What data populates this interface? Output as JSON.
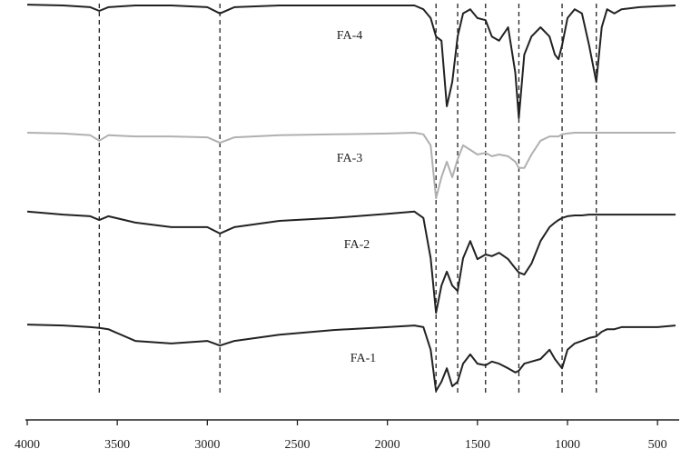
{
  "chart_data": {
    "type": "line",
    "xlim": [
      4000,
      400
    ],
    "ylim": [
      0,
      100
    ],
    "xticks": [
      4000,
      3500,
      3000,
      2500,
      2000,
      1500,
      1000,
      500
    ],
    "marker_lines": [
      3600,
      2930,
      1730,
      1610,
      1455,
      1270,
      1030,
      840
    ],
    "x": [
      4000,
      3800,
      3650,
      3600,
      3550,
      3400,
      3200,
      3000,
      2930,
      2850,
      2600,
      2300,
      2000,
      1850,
      1800,
      1760,
      1730,
      1700,
      1670,
      1640,
      1610,
      1580,
      1540,
      1500,
      1455,
      1420,
      1380,
      1330,
      1290,
      1270,
      1240,
      1200,
      1150,
      1100,
      1070,
      1050,
      1030,
      1000,
      960,
      920,
      880,
      840,
      810,
      780,
      740,
      700,
      600,
      500,
      400
    ],
    "series": [
      {
        "name": "FA-4",
        "color": "#222222",
        "values": [
          98.9,
          98.7,
          98.3,
          97.4,
          98.3,
          98.7,
          98.7,
          98.3,
          96.8,
          98.3,
          98.7,
          98.7,
          98.7,
          98.7,
          97.8,
          95.7,
          91.3,
          90.3,
          74.7,
          80.5,
          91.3,
          96.8,
          97.8,
          95.7,
          95.2,
          91.3,
          90.3,
          93.5,
          82.7,
          71.9,
          87.0,
          91.3,
          93.5,
          91.3,
          87.0,
          85.9,
          89.2,
          95.7,
          97.8,
          96.8,
          89.2,
          80.5,
          93.5,
          97.8,
          96.8,
          97.8,
          98.3,
          98.5,
          98.7
        ]
      },
      {
        "name": "FA-3",
        "color": "#b0b0b0",
        "values": [
          68.4,
          68.2,
          67.8,
          66.5,
          67.8,
          67.5,
          67.5,
          67.3,
          66.0,
          67.3,
          67.8,
          68.0,
          68.2,
          68.4,
          68.0,
          65.4,
          52.8,
          57.8,
          61.5,
          57.8,
          62.1,
          65.4,
          64.3,
          63.2,
          63.6,
          62.8,
          63.2,
          62.8,
          61.5,
          60.0,
          60.0,
          63.2,
          66.5,
          67.5,
          67.5,
          67.5,
          68.0,
          68.2,
          68.4,
          68.4,
          68.4,
          68.4,
          68.4,
          68.4,
          68.4,
          68.4,
          68.4,
          68.4,
          68.4
        ]
      },
      {
        "name": "FA-2",
        "color": "#222222",
        "values": [
          49.6,
          48.9,
          48.5,
          47.6,
          48.5,
          47.0,
          45.9,
          45.9,
          44.4,
          45.9,
          47.4,
          48.1,
          49.1,
          49.6,
          48.1,
          38.5,
          25.5,
          32.0,
          35.3,
          32.0,
          30.7,
          38.5,
          42.6,
          38.3,
          39.4,
          39.0,
          39.8,
          38.3,
          36.1,
          35.1,
          34.6,
          37.2,
          42.6,
          45.9,
          47.0,
          47.6,
          48.1,
          48.5,
          48.7,
          48.7,
          48.9,
          48.9,
          48.9,
          48.9,
          48.9,
          48.9,
          48.9,
          48.9,
          48.9
        ]
      },
      {
        "name": "FA-1",
        "color": "#222222",
        "values": [
          22.7,
          22.5,
          22.1,
          21.9,
          21.6,
          18.8,
          18.2,
          18.8,
          17.7,
          18.8,
          20.3,
          21.4,
          22.1,
          22.5,
          22.1,
          16.7,
          6.9,
          9.1,
          12.3,
          8.0,
          9.1,
          13.4,
          15.6,
          13.4,
          13.0,
          13.9,
          13.4,
          12.3,
          11.3,
          11.7,
          13.4,
          13.9,
          14.5,
          16.7,
          14.5,
          13.4,
          12.3,
          16.7,
          18.2,
          18.8,
          19.5,
          19.9,
          21.0,
          21.6,
          21.6,
          22.1,
          22.1,
          22.1,
          22.5
        ]
      }
    ]
  }
}
